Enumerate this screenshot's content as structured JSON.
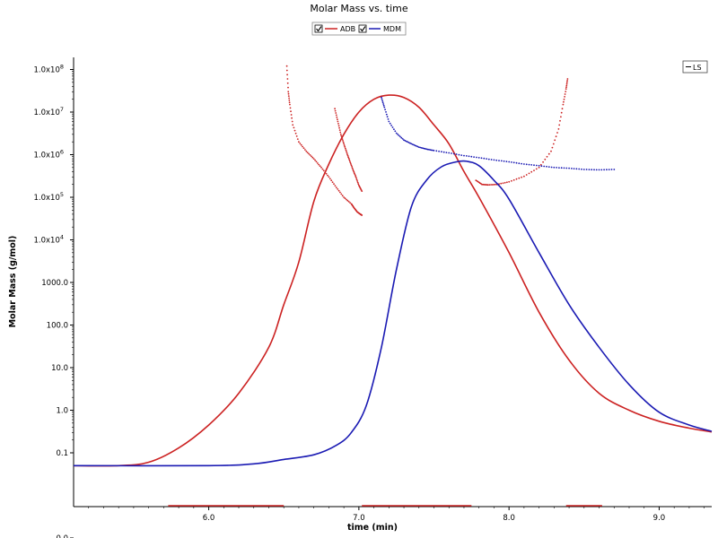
{
  "chart_data": {
    "type": "line",
    "title": "Molar Mass vs. time",
    "xlabel": "time (min)",
    "ylabel": "Molar Mass (g/mol)",
    "xlim": [
      5.1,
      9.35
    ],
    "y_scale": "log",
    "ylim": [
      0.0,
      100000000.0
    ],
    "x_ticks": [
      {
        "value": 6.0,
        "label": "6.0"
      },
      {
        "value": 7.0,
        "label": "7.0"
      },
      {
        "value": 8.0,
        "label": "8.0"
      },
      {
        "value": 9.0,
        "label": "9.0"
      }
    ],
    "y_ticks": [
      {
        "value": 0.0,
        "label": "0.0"
      },
      {
        "value": 0.1,
        "label": "0.1"
      },
      {
        "value": 1.0,
        "label": "1.0"
      },
      {
        "value": 10.0,
        "label": "10.0"
      },
      {
        "value": 100.0,
        "label": "100.0"
      },
      {
        "value": 1000.0,
        "label": "1000.0"
      },
      {
        "value": 10000,
        "label": "1.0x10",
        "sup": "4"
      },
      {
        "value": 100000,
        "label": "1.0x10",
        "sup": "5"
      },
      {
        "value": 1000000,
        "label": "1.0x10",
        "sup": "6"
      },
      {
        "value": 10000000,
        "label": "1.0x10",
        "sup": "7"
      },
      {
        "value": 100000000,
        "label": "1.0x10",
        "sup": "8"
      }
    ],
    "grid": false,
    "legend": {
      "placement": "top-center",
      "items": [
        {
          "name": "ADB",
          "color": "#cc2222",
          "checked": true
        },
        {
          "name": "MDM",
          "color": "#1a1ab3",
          "checked": true
        }
      ]
    },
    "corner_legend": {
      "placement": "top-right",
      "label": "LS"
    },
    "series": [
      {
        "name": "ADB",
        "color": "#cc2222",
        "trace": {
          "x": [
            5.1,
            5.4,
            5.6,
            5.8,
            6.0,
            6.2,
            6.4,
            6.5,
            6.6,
            6.7,
            6.8,
            6.9,
            7.0,
            7.1,
            7.2,
            7.3,
            7.4,
            7.5,
            7.6,
            7.7,
            7.8,
            8.0,
            8.2,
            8.4,
            8.6,
            8.8,
            9.0,
            9.2,
            9.35
          ],
          "y": [
            0.05,
            0.05,
            0.06,
            0.13,
            0.45,
            2.5,
            30,
            300,
            3000,
            80000,
            600000,
            3000000,
            10000000,
            20000000,
            25000000,
            22000000,
            13000000,
            5000000,
            1800000,
            400000,
            100000,
            5000,
            200,
            15,
            2.5,
            1.0,
            0.55,
            0.38,
            0.31
          ]
        },
        "molar_mass_points": [
          {
            "x": [
              6.52,
              6.53,
              6.54,
              6.56,
              6.6,
              6.65,
              6.7,
              6.75,
              6.8,
              6.85,
              6.9,
              6.95,
              6.97,
              6.99,
              7.01,
              7.02
            ],
            "y": [
              120000000,
              30000000,
              15000000,
              5000000,
              2000000,
              1200000,
              800000,
              500000,
              300000,
              170000,
              100000,
              70000,
              55000,
              45000,
              40000,
              38000
            ]
          },
          {
            "x": [
              6.84,
              6.86,
              6.88,
              6.9,
              6.92,
              6.94,
              6.96,
              6.98,
              7.0,
              7.02
            ],
            "y": [
              12000000,
              6000000,
              3000000,
              1800000,
              1100000,
              700000,
              450000,
              300000,
              190000,
              140000
            ]
          },
          {
            "x": [
              7.78,
              7.82,
              7.86,
              7.92,
              8.0,
              8.1,
              8.2,
              8.28,
              8.33,
              8.36,
              8.38,
              8.39
            ],
            "y": [
              250000,
              200000,
              195000,
              200000,
              230000,
              310000,
              500000,
              1200000,
              4000000,
              15000000,
              35000000,
              60000000
            ]
          }
        ]
      },
      {
        "name": "MDM",
        "color": "#1a1ab3",
        "trace": {
          "x": [
            5.1,
            6.0,
            6.3,
            6.5,
            6.7,
            6.85,
            6.95,
            7.05,
            7.15,
            7.25,
            7.35,
            7.45,
            7.55,
            7.65,
            7.72,
            7.8,
            7.9,
            8.0,
            8.2,
            8.4,
            8.6,
            8.8,
            9.0,
            9.2,
            9.35
          ],
          "y": [
            0.05,
            0.05,
            0.055,
            0.07,
            0.09,
            0.15,
            0.3,
            1.3,
            30,
            2000,
            60000,
            250000,
            520000,
            680000,
            700000,
            550000,
            250000,
            90000,
            5000,
            300,
            30,
            4,
            0.9,
            0.45,
            0.32
          ]
        },
        "molar_mass_points": [
          {
            "x": [
              7.15,
              7.17,
              7.2,
              7.25,
              7.3,
              7.35,
              7.4,
              7.45,
              7.5,
              7.6,
              7.7,
              7.8,
              7.9,
              8.0,
              8.1,
              8.2,
              8.3,
              8.4,
              8.5,
              8.6,
              8.7
            ],
            "y": [
              22000000,
              13000000,
              6000000,
              3200000,
              2200000,
              1800000,
              1500000,
              1350000,
              1250000,
              1100000,
              950000,
              850000,
              750000,
              680000,
              600000,
              550000,
              500000,
              480000,
              450000,
              440000,
              450000
            ]
          }
        ]
      }
    ]
  }
}
